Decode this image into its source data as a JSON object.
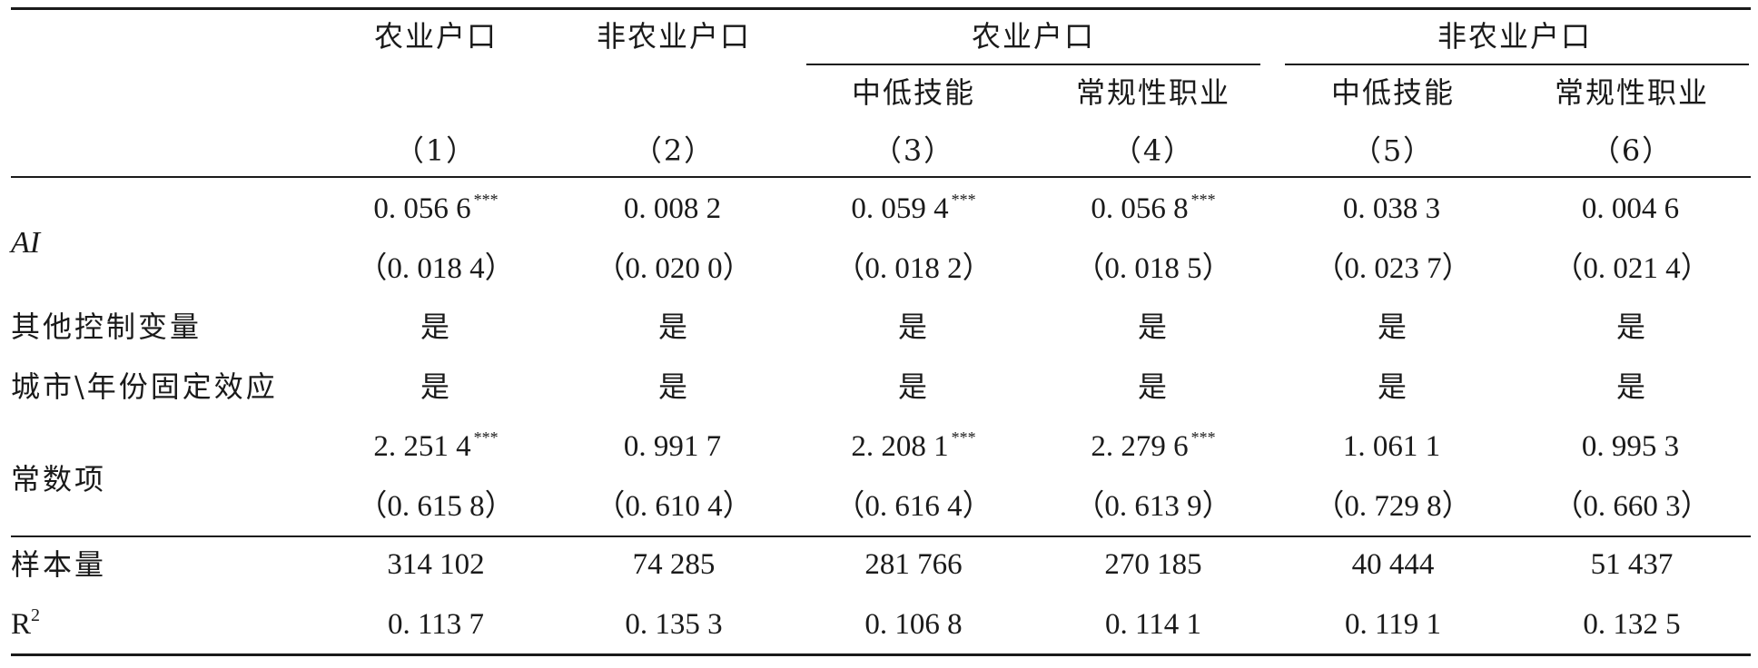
{
  "header": {
    "group_headers": [
      "农业户口",
      "非农业户口",
      "农业户口",
      "非农业户口"
    ],
    "sub_headers": [
      "中低技能",
      "常规性职业",
      "中低技能",
      "常规性职业"
    ],
    "col_numbers": [
      "（1）",
      "（2）",
      "（3）",
      "（4）",
      "（5）",
      "（6）"
    ]
  },
  "rows": {
    "ai": {
      "label": "AI",
      "coef": [
        "0. 056 6",
        "0. 008 2",
        "0. 059 4",
        "0. 056 8",
        "0. 038 3",
        "0. 004 6"
      ],
      "sig": [
        "***",
        "",
        "***",
        "***",
        "",
        ""
      ],
      "se": [
        "（0. 018 4）",
        "（0. 020 0）",
        "（0. 018 2）",
        "（0. 018 5）",
        "（0. 023 7）",
        "（0. 021 4）"
      ]
    },
    "controls": {
      "label": "其他控制变量",
      "values": [
        "是",
        "是",
        "是",
        "是",
        "是",
        "是"
      ]
    },
    "fixed_effects": {
      "label": "城市\\年份固定效应",
      "values": [
        "是",
        "是",
        "是",
        "是",
        "是",
        "是"
      ]
    },
    "constant": {
      "label": "常数项",
      "coef": [
        "2. 251 4",
        "0. 991 7",
        "2. 208 1",
        "2. 279 6",
        "1. 061 1",
        "0. 995 3"
      ],
      "sig": [
        "***",
        "",
        "***",
        "***",
        "",
        ""
      ],
      "se": [
        "（0. 615 8）",
        "（0. 610 4）",
        "（0. 616 4）",
        "（0. 613 9）",
        "（0. 729 8）",
        "（0. 660 3）"
      ]
    },
    "sample": {
      "label": "样本量",
      "values": [
        "314 102",
        "74 285",
        "281 766",
        "270 185",
        "40 444",
        "51 437"
      ]
    },
    "r2": {
      "label": "R",
      "label_sup": "2",
      "values": [
        "0. 113 7",
        "0. 135 3",
        "0. 106 8",
        "0. 114 1",
        "0. 119 1",
        "0. 132 5"
      ]
    }
  }
}
